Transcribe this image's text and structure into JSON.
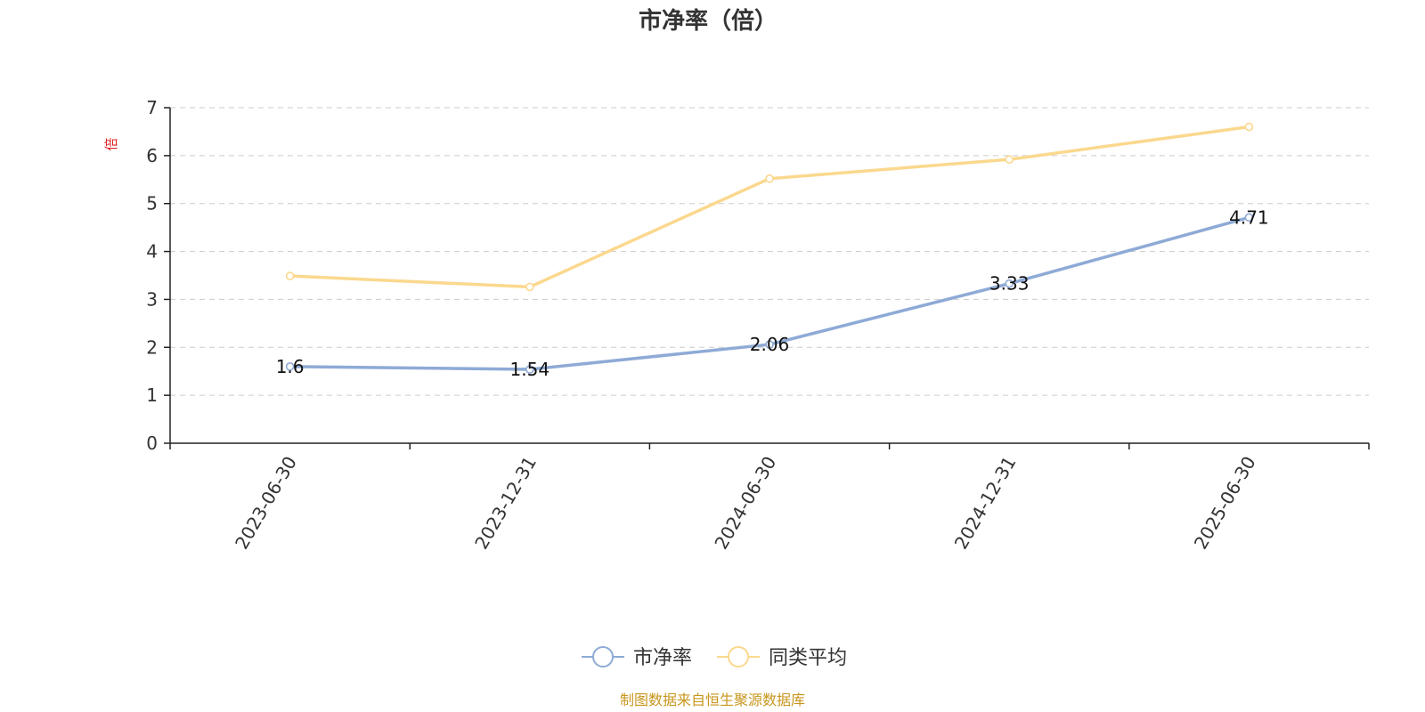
{
  "chart_data": {
    "type": "line",
    "title": "市净率（倍）",
    "unit_label": "倍",
    "categories": [
      "2023-06-30",
      "2023-12-31",
      "2024-06-30",
      "2024-12-31",
      "2025-06-30"
    ],
    "series": [
      {
        "name": "市净率",
        "values": [
          1.6,
          1.54,
          2.06,
          3.33,
          4.71
        ],
        "data_labels": [
          "1.6",
          "1.54",
          "2.06",
          "3.33",
          "4.71"
        ],
        "color": "#8eaad6"
      },
      {
        "name": "同类平均",
        "values": [
          3.49,
          3.26,
          5.52,
          5.92,
          6.6
        ],
        "color": "#fbd88e"
      }
    ],
    "ylim": [
      0,
      7
    ],
    "yticks": [
      "0",
      "1",
      "2",
      "3",
      "4",
      "5",
      "6",
      "7"
    ],
    "grid": true,
    "legend_position": "bottom-center"
  },
  "source_note": "制图数据来自恒生聚源数据库"
}
